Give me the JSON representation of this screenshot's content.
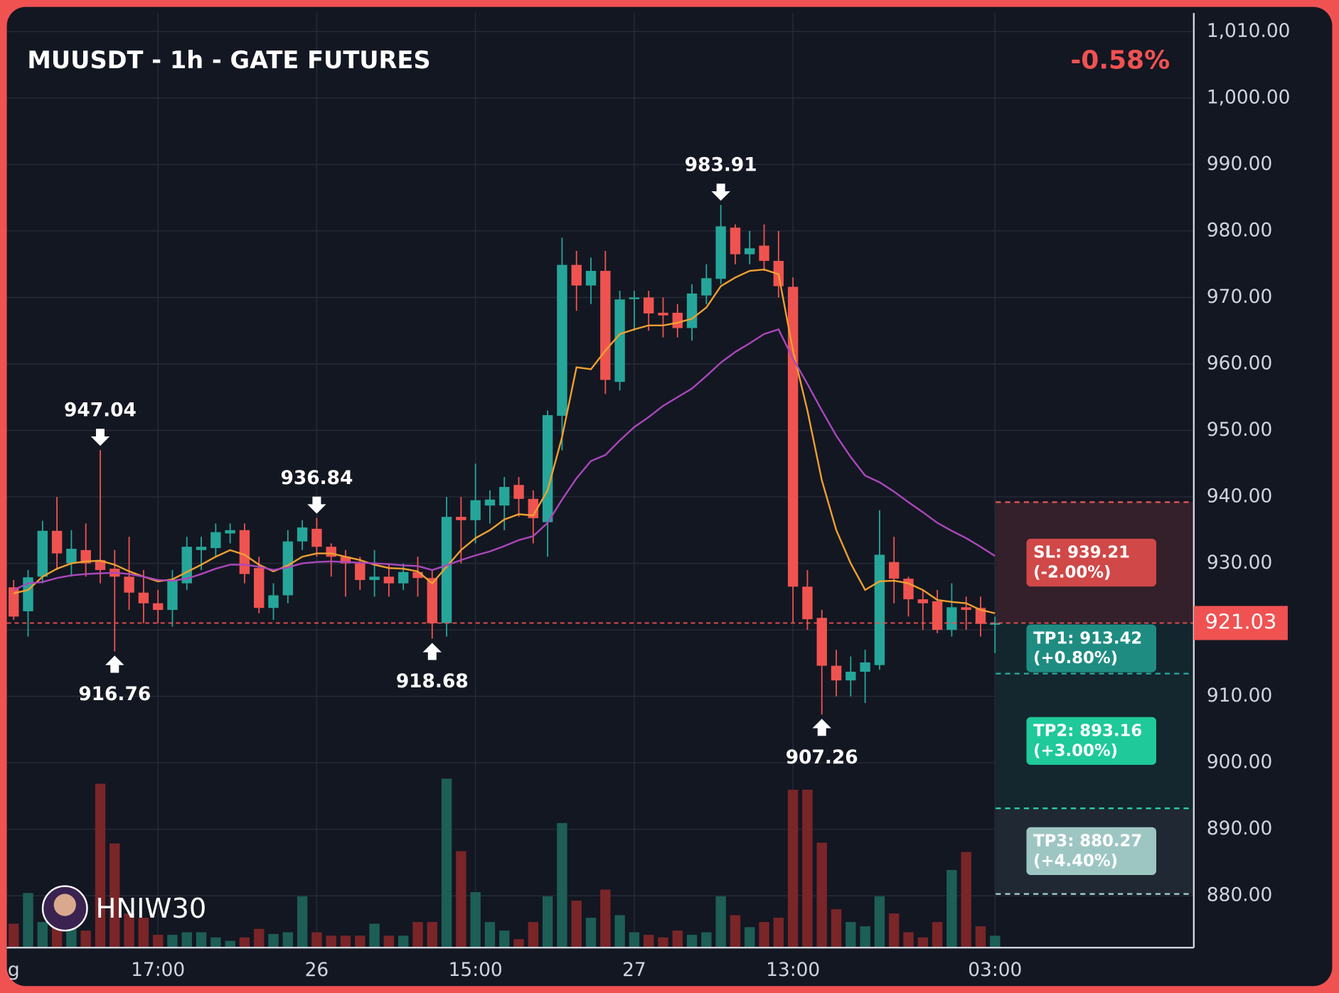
{
  "chart_data": {
    "type": "candlestick",
    "title": "MUUSDT - 1h - GATE FUTURES",
    "change": "-0.58%",
    "watermark": "HNIW30",
    "categories": [
      "g",
      null,
      null,
      null,
      null,
      null,
      null,
      null,
      null,
      null,
      "17:00",
      null,
      null,
      null,
      null,
      null,
      null,
      null,
      null,
      null,
      null,
      "26",
      null,
      null,
      null,
      null,
      null,
      null,
      null,
      null,
      null,
      null,
      "15:00",
      null,
      null,
      null,
      null,
      null,
      null,
      null,
      null,
      null,
      null,
      "27",
      null,
      null,
      null,
      null,
      null,
      null,
      null,
      null,
      null,
      null,
      "13:00",
      null,
      null,
      null,
      null,
      null,
      null,
      null,
      null,
      null,
      null,
      null,
      null,
      null,
      "03:00"
    ],
    "candles": [
      [
        926.4,
        927.5,
        921.5,
        922.0
      ],
      [
        922.8,
        929,
        919,
        927.9
      ],
      [
        928,
        936.4,
        927,
        934.9
      ],
      [
        934.9,
        940,
        929,
        931.5
      ],
      [
        930,
        935,
        928,
        932.2
      ],
      [
        932,
        936,
        928,
        930
      ],
      [
        930.5,
        947.04,
        927,
        929
      ],
      [
        929.2,
        932,
        916.76,
        928
      ],
      [
        928,
        934,
        923,
        925.6
      ],
      [
        925.6,
        929,
        921,
        924
      ],
      [
        924,
        926,
        921,
        923
      ],
      [
        923,
        929,
        920.5,
        927.4
      ],
      [
        927,
        934,
        926,
        932.5
      ],
      [
        932,
        934,
        929,
        932.5
      ],
      [
        932.3,
        936,
        931,
        934.7
      ],
      [
        934.5,
        936,
        933,
        935
      ],
      [
        935,
        936,
        927,
        928.4
      ],
      [
        929.3,
        931,
        922.5,
        923.3
      ],
      [
        923.3,
        927,
        921.5,
        925.2
      ],
      [
        925.2,
        935,
        924,
        933.3
      ],
      [
        933.3,
        936.5,
        932,
        935.4
      ],
      [
        935.2,
        936.84,
        931,
        932.5
      ],
      [
        932.5,
        933,
        928,
        931
      ],
      [
        931,
        932,
        925,
        930
      ],
      [
        930,
        931,
        926,
        927.5
      ],
      [
        927.5,
        932,
        925,
        928
      ],
      [
        928,
        930,
        925,
        927
      ],
      [
        927,
        930,
        926,
        928.7
      ],
      [
        928.7,
        931,
        925,
        927.8
      ],
      [
        927.8,
        929,
        918.68,
        921
      ],
      [
        921,
        940,
        919,
        937
      ],
      [
        937,
        940,
        930,
        936.5
      ],
      [
        936.5,
        945,
        933,
        939.5
      ],
      [
        938.7,
        941,
        936,
        939.6
      ],
      [
        938.7,
        943,
        935,
        941.5
      ],
      [
        941.8,
        943,
        937,
        939.7
      ],
      [
        939.7,
        941,
        933,
        936.8
      ],
      [
        936.2,
        953,
        931,
        952.3
      ],
      [
        952.2,
        979,
        947,
        974.9
      ],
      [
        974.9,
        977,
        968,
        971.8
      ],
      [
        971.8,
        976,
        969,
        974
      ],
      [
        974,
        977,
        955.5,
        957.6
      ],
      [
        957.3,
        971,
        956,
        969.7
      ],
      [
        969.8,
        971,
        965,
        970
      ],
      [
        970,
        971,
        965,
        967.6
      ],
      [
        967.7,
        970,
        964,
        967.3
      ],
      [
        967.7,
        969,
        964,
        965.4
      ],
      [
        965.4,
        972,
        963.5,
        970.6
      ],
      [
        970.3,
        975,
        969,
        972.9
      ],
      [
        972.8,
        983.91,
        972,
        980.7
      ],
      [
        980.5,
        981,
        975,
        976.5
      ],
      [
        976.5,
        980,
        975,
        977.4
      ],
      [
        977.8,
        981,
        974,
        975.5
      ],
      [
        975.5,
        980,
        970,
        971.7
      ],
      [
        971.6,
        973,
        921,
        926.5
      ],
      [
        926.5,
        929,
        920,
        921.6
      ],
      [
        921.8,
        923,
        907.26,
        914.6
      ],
      [
        914.6,
        917,
        910,
        912.4
      ],
      [
        912.4,
        916,
        910,
        913.7
      ],
      [
        913.7,
        917,
        909,
        915.1
      ],
      [
        914.7,
        938,
        914,
        931.3
      ],
      [
        930.2,
        934,
        924,
        927.7
      ],
      [
        927.7,
        928,
        922,
        924.6
      ],
      [
        924.6,
        926,
        920,
        924
      ],
      [
        924.3,
        926,
        919.5,
        920
      ],
      [
        920,
        927,
        919,
        923.4
      ],
      [
        923.4,
        925,
        920,
        923
      ],
      [
        923.3,
        925,
        919,
        920.9
      ],
      [
        921,
        922,
        916.5,
        921.03
      ]
    ],
    "volume": [
      28,
      64,
      30,
      30,
      25,
      20,
      192,
      122,
      40,
      35,
      15,
      15,
      18,
      18,
      12,
      8,
      12,
      22,
      16,
      18,
      60,
      18,
      14,
      14,
      14,
      28,
      14,
      14,
      30,
      30,
      198,
      113,
      65,
      30,
      20,
      10,
      30,
      60,
      146,
      55,
      35,
      68,
      38,
      18,
      15,
      12,
      20,
      15,
      18,
      60,
      38,
      24,
      30,
      35,
      185,
      185,
      123,
      45,
      30,
      25,
      60,
      40,
      18,
      12,
      30,
      91,
      112,
      25,
      14
    ],
    "up_color": "#26a69a",
    "down_color": "#ef5350",
    "volume_up_color": "#1d5e57",
    "volume_down_color": "#7a2528",
    "series": [
      {
        "color": "#f0a030",
        "values": [
          925.5,
          926,
          928,
          929.2,
          930,
          930.3,
          930.4,
          929.8,
          928.8,
          928,
          927.3,
          927.6,
          928.7,
          929.8,
          931,
          932,
          931.3,
          929.8,
          928.8,
          929.7,
          931,
          931.5,
          931.5,
          931,
          930.5,
          929.8,
          929.3,
          929.2,
          928.8,
          927,
          929.5,
          932,
          933.8,
          935,
          936.6,
          937.4,
          937.2,
          941,
          949,
          959.5,
          959.2,
          962,
          964.5,
          965.2,
          965.8,
          965.8,
          966.2,
          966.8,
          968.5,
          971.7,
          973,
          974,
          974.2,
          973.5,
          962,
          953,
          942.5,
          935,
          930,
          926,
          927.3,
          927.4,
          927,
          926,
          924.5,
          924.2,
          924,
          923,
          922.5
        ]
      },
      {
        "color": "#ab47bc",
        "values": [
          926,
          927,
          927.2,
          927.8,
          928.2,
          928.4,
          928.5,
          928.6,
          928.4,
          928,
          927.5,
          927.4,
          927.7,
          928.4,
          929.2,
          929.8,
          929.8,
          929.5,
          929,
          929.4,
          930,
          930.2,
          930.3,
          930.2,
          930.1,
          930,
          929.9,
          929.7,
          929.6,
          929,
          929.7,
          930.5,
          931.2,
          931.8,
          932.6,
          933.5,
          934.1,
          936.1,
          939.6,
          942.8,
          945.4,
          946.3,
          948.5,
          950.5,
          952,
          953.7,
          955,
          956.3,
          958.2,
          960.2,
          961.8,
          963.1,
          964.5,
          965.2,
          960.8,
          957,
          953,
          949.2,
          946,
          943.2,
          942.2,
          940.8,
          939.2,
          937.7,
          936.1,
          934.9,
          933.8,
          932.5,
          931.1
        ]
      }
    ],
    "markers": [
      {
        "value": 947.04,
        "kind": "high"
      },
      {
        "value": 916.76,
        "kind": "low"
      },
      {
        "value": 936.84,
        "kind": "high"
      },
      {
        "value": 918.68,
        "kind": "low"
      },
      {
        "value": 983.91,
        "kind": "high"
      },
      {
        "value": 907.26,
        "kind": "low"
      }
    ],
    "last_price": 921.03,
    "last_price_color": "#f05252",
    "levels": [
      {
        "value": 939.21,
        "label": "SL: 939.21",
        "pct": "(-2.00%)",
        "color": "#e05555",
        "box_color": "#d04848",
        "zone_color": "#33202a"
      },
      {
        "value": 913.42,
        "label": "TP1: 913.42",
        "pct": "(+0.80%)",
        "color": "#26a69a",
        "box_color": "#1f8c82",
        "zone_color": "#13262e"
      },
      {
        "value": 893.16,
        "label": "TP2: 893.16",
        "pct": "(+3.00%)",
        "color": "#2ad1a0",
        "box_color": "#1fc99a",
        "zone_color": "#14262e"
      },
      {
        "value": 880.27,
        "label": "TP3: 880.27",
        "pct": "(+4.40%)",
        "color": "#9fd0cc",
        "box_color": "#9dc6c3",
        "zone_color": "#1f2833"
      }
    ],
    "ylim": [
      872.2,
      1012.8
    ],
    "yticks": [
      {
        "value": 880,
        "label": "880.00"
      },
      {
        "value": 890,
        "label": "890.00"
      },
      {
        "value": 900,
        "label": "900.00"
      },
      {
        "value": 910,
        "label": "910.00"
      },
      {
        "value": 920,
        "label": "920.00"
      },
      {
        "value": 930,
        "label": "930.00"
      },
      {
        "value": 940,
        "label": "940.00"
      },
      {
        "value": 950,
        "label": "950.00"
      },
      {
        "value": 960,
        "label": "960.00"
      },
      {
        "value": 970,
        "label": "970.00"
      },
      {
        "value": 980,
        "label": "980.00"
      },
      {
        "value": 990,
        "label": "990.00"
      },
      {
        "value": 1000,
        "label": "1,000.00"
      },
      {
        "value": 1010,
        "label": "1,010.00"
      }
    ],
    "grid": true
  }
}
